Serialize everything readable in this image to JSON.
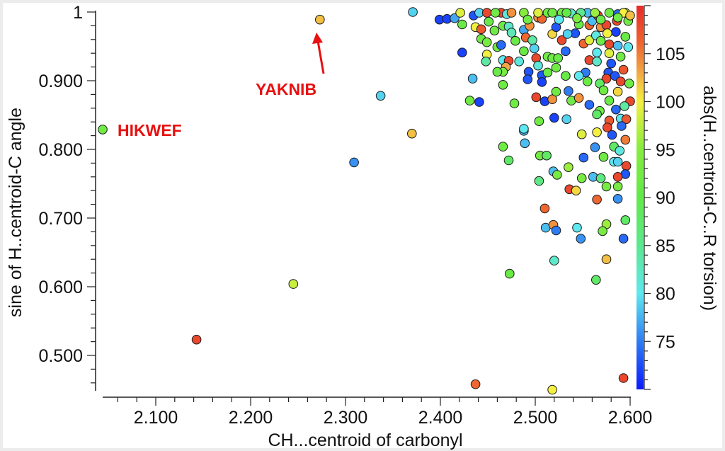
{
  "chart_data": {
    "type": "scatter",
    "title": "",
    "xlabel": "CH...centroid of carbonyl",
    "ylabel": "sine of H..centroid-C angle",
    "colorbar_label": "abs(H..centroid-C..R torsion)",
    "xlim": [
      2.037,
      2.602
    ],
    "ylim": [
      0.45,
      1.0
    ],
    "clim": [
      70,
      110
    ],
    "x_ticks": [
      2.1,
      2.2,
      2.3,
      2.4,
      2.5,
      2.6
    ],
    "x_tick_labels": [
      "2.100",
      "2.200",
      "2.300",
      "2.400",
      "2.500",
      "2.600"
    ],
    "y_ticks": [
      0.5,
      0.6,
      0.7,
      0.8,
      0.9,
      1.0
    ],
    "y_tick_labels": [
      "0.500",
      "0.600",
      "0.700",
      "0.800",
      "0.900",
      "1"
    ],
    "colorbar_ticks": [
      75,
      80,
      85,
      90,
      95,
      100,
      105
    ],
    "colorbar_tick_labels": [
      "75",
      "80",
      "85",
      "90",
      "95",
      "100",
      "105"
    ],
    "colorscale": [
      [
        70,
        "#0a1cff"
      ],
      [
        75,
        "#2f7cf2"
      ],
      [
        80,
        "#5fe8f0"
      ],
      [
        85,
        "#5ce890"
      ],
      [
        90,
        "#62ea48"
      ],
      [
        95,
        "#86ec40"
      ],
      [
        100,
        "#f4f040"
      ],
      [
        103,
        "#f2a844"
      ],
      [
        106,
        "#ee6630"
      ],
      [
        110,
        "#e52a2a"
      ]
    ],
    "grid": false,
    "annotations": [
      {
        "text": "HIKWEF",
        "x": 2.044,
        "y": 0.829,
        "color": "#e81010"
      },
      {
        "text": "YAKNIB",
        "x": 2.273,
        "y": 0.989,
        "color": "#e81010",
        "arrow": true
      }
    ],
    "points_format": [
      "x",
      "y",
      "torsion"
    ],
    "points": [
      [
        2.044,
        0.829,
        92
      ],
      [
        2.273,
        0.989,
        102
      ],
      [
        2.371,
        1.0,
        79
      ],
      [
        2.337,
        0.878,
        79
      ],
      [
        2.309,
        0.781,
        76
      ],
      [
        2.37,
        0.823,
        102
      ],
      [
        2.245,
        0.604,
        98
      ],
      [
        2.143,
        0.523,
        108
      ],
      [
        2.437,
        0.458,
        106
      ],
      [
        2.518,
        0.45,
        100
      ],
      [
        2.593,
        0.467,
        108
      ],
      [
        2.473,
        0.619,
        91
      ],
      [
        2.52,
        0.638,
        82
      ],
      [
        2.564,
        0.61,
        88
      ],
      [
        2.575,
        0.64,
        102
      ],
      [
        2.466,
        0.804,
        92
      ],
      [
        2.489,
        0.809,
        78
      ],
      [
        2.488,
        0.827,
        78
      ],
      [
        2.472,
        0.784,
        88
      ],
      [
        2.505,
        0.791,
        92
      ],
      [
        2.512,
        0.791,
        88
      ],
      [
        2.519,
        0.768,
        78
      ],
      [
        2.523,
        0.763,
        93
      ],
      [
        2.535,
        0.774,
        96
      ],
      [
        2.551,
        0.788,
        74
      ],
      [
        2.504,
        0.754,
        86
      ],
      [
        2.549,
        0.758,
        93
      ],
      [
        2.561,
        0.76,
        78
      ],
      [
        2.569,
        0.758,
        86
      ],
      [
        2.575,
        0.746,
        93
      ],
      [
        2.563,
        0.803,
        76
      ],
      [
        2.583,
        0.804,
        88
      ],
      [
        2.589,
        0.798,
        81
      ],
      [
        2.572,
        0.789,
        92
      ],
      [
        2.583,
        0.782,
        80
      ],
      [
        2.587,
        0.782,
        79
      ],
      [
        2.596,
        0.776,
        108
      ],
      [
        2.595,
        0.764,
        73
      ],
      [
        2.587,
        0.76,
        108
      ],
      [
        2.587,
        0.746,
        93
      ],
      [
        2.536,
        0.742,
        108
      ],
      [
        2.543,
        0.74,
        101
      ],
      [
        2.565,
        0.727,
        106
      ],
      [
        2.587,
        0.728,
        76
      ],
      [
        2.51,
        0.714,
        106
      ],
      [
        2.511,
        0.686,
        78
      ],
      [
        2.519,
        0.69,
        104
      ],
      [
        2.522,
        0.682,
        75
      ],
      [
        2.544,
        0.686,
        80
      ],
      [
        2.548,
        0.67,
        76
      ],
      [
        2.575,
        0.691,
        96
      ],
      [
        2.571,
        0.681,
        93
      ],
      [
        2.595,
        0.697,
        88
      ],
      [
        2.593,
        0.67,
        74
      ],
      [
        2.549,
        0.822,
        99
      ],
      [
        2.565,
        0.825,
        100
      ],
      [
        2.581,
        0.821,
        73
      ],
      [
        2.595,
        0.814,
        105
      ],
      [
        2.399,
        0.989,
        72
      ],
      [
        2.407,
        0.99,
        72
      ],
      [
        2.415,
        0.991,
        77
      ],
      [
        2.421,
        0.999,
        99
      ],
      [
        2.423,
        0.982,
        91
      ],
      [
        2.435,
        0.995,
        73
      ],
      [
        2.441,
        0.999,
        79
      ],
      [
        2.449,
        0.999,
        108
      ],
      [
        2.451,
        0.986,
        91
      ],
      [
        2.437,
        0.978,
        100
      ],
      [
        2.443,
        0.975,
        107
      ],
      [
        2.457,
        0.973,
        92
      ],
      [
        2.464,
        0.999,
        108
      ],
      [
        2.47,
        0.997,
        81
      ],
      [
        2.475,
        0.999,
        104
      ],
      [
        2.466,
        0.98,
        91
      ],
      [
        2.472,
        0.979,
        82
      ],
      [
        2.475,
        0.97,
        83
      ],
      [
        2.443,
        0.961,
        92
      ],
      [
        2.449,
        0.956,
        93
      ],
      [
        2.46,
        0.949,
        92
      ],
      [
        2.464,
        0.952,
        74
      ],
      [
        2.479,
        0.958,
        91
      ],
      [
        2.423,
        0.941,
        72
      ],
      [
        2.449,
        0.938,
        100
      ],
      [
        2.448,
        0.928,
        84
      ],
      [
        2.466,
        0.93,
        80
      ],
      [
        2.472,
        0.929,
        108
      ],
      [
        2.483,
        0.928,
        81
      ],
      [
        2.469,
        0.92,
        103
      ],
      [
        2.466,
        0.913,
        93
      ],
      [
        2.46,
        0.913,
        91
      ],
      [
        2.434,
        0.903,
        78
      ],
      [
        2.466,
        0.894,
        92
      ],
      [
        2.431,
        0.871,
        92
      ],
      [
        2.441,
        0.869,
        72
      ],
      [
        2.478,
        0.867,
        92
      ],
      [
        2.488,
        0.974,
        77
      ],
      [
        2.49,
        0.963,
        106
      ],
      [
        2.497,
        0.959,
        84
      ],
      [
        2.499,
        0.947,
        79
      ],
      [
        2.488,
        0.943,
        91
      ],
      [
        2.493,
        0.913,
        73
      ],
      [
        2.492,
        0.902,
        73
      ],
      [
        2.507,
        0.908,
        73
      ],
      [
        2.507,
        0.898,
        72
      ],
      [
        2.501,
        0.933,
        108
      ],
      [
        2.513,
        0.935,
        92
      ],
      [
        2.518,
        0.933,
        92
      ],
      [
        2.524,
        0.933,
        91
      ],
      [
        2.503,
        0.922,
        81
      ],
      [
        2.513,
        0.912,
        91
      ],
      [
        2.522,
        0.919,
        92
      ],
      [
        2.532,
        0.907,
        91
      ],
      [
        2.501,
        0.876,
        108
      ],
      [
        2.51,
        0.87,
        72
      ],
      [
        2.518,
        0.873,
        104
      ],
      [
        2.522,
        0.884,
        92
      ],
      [
        2.535,
        0.885,
        75
      ],
      [
        2.538,
        0.871,
        92
      ],
      [
        2.546,
        0.875,
        104
      ],
      [
        2.557,
        0.865,
        74
      ],
      [
        2.52,
        0.846,
        72
      ],
      [
        2.504,
        0.841,
        92
      ],
      [
        2.533,
        0.844,
        79
      ],
      [
        2.488,
        0.83,
        80
      ],
      [
        2.494,
        0.98,
        104
      ],
      [
        2.503,
        0.992,
        104
      ],
      [
        2.507,
        0.99,
        106
      ],
      [
        2.513,
        0.999,
        92
      ],
      [
        2.518,
        0.968,
        101
      ],
      [
        2.522,
        0.978,
        73
      ],
      [
        2.528,
        0.959,
        108
      ],
      [
        2.532,
        0.943,
        74
      ],
      [
        2.542,
        0.969,
        73
      ],
      [
        2.534,
        0.968,
        79
      ],
      [
        2.528,
        0.999,
        92
      ],
      [
        2.538,
        0.998,
        82
      ],
      [
        2.546,
        0.982,
        91
      ],
      [
        2.555,
        0.999,
        78
      ],
      [
        2.557,
        0.981,
        106
      ],
      [
        2.56,
        0.987,
        78
      ],
      [
        2.566,
        0.995,
        108
      ],
      [
        2.569,
        0.978,
        104
      ],
      [
        2.551,
        0.954,
        106
      ],
      [
        2.557,
        0.959,
        99
      ],
      [
        2.564,
        0.966,
        81
      ],
      [
        2.575,
        0.981,
        108
      ],
      [
        2.586,
        0.987,
        108
      ],
      [
        2.587,
        0.997,
        74
      ],
      [
        2.595,
        0.999,
        98
      ],
      [
        2.598,
        0.987,
        92
      ],
      [
        2.585,
        0.971,
        72
      ],
      [
        2.576,
        0.969,
        100
      ],
      [
        2.569,
        0.958,
        92
      ],
      [
        2.578,
        0.953,
        108
      ],
      [
        2.587,
        0.951,
        78
      ],
      [
        2.598,
        0.949,
        80
      ],
      [
        2.595,
        0.964,
        91
      ],
      [
        2.578,
        0.94,
        99
      ],
      [
        2.59,
        0.935,
        92
      ],
      [
        2.565,
        0.941,
        80
      ],
      [
        2.557,
        0.93,
        108
      ],
      [
        2.565,
        0.928,
        82
      ],
      [
        2.58,
        0.925,
        73
      ],
      [
        2.593,
        0.916,
        107
      ],
      [
        2.577,
        0.912,
        73
      ],
      [
        2.584,
        0.907,
        73
      ],
      [
        2.575,
        0.903,
        108
      ],
      [
        2.59,
        0.899,
        108
      ],
      [
        2.599,
        0.896,
        92
      ],
      [
        2.553,
        0.912,
        75
      ],
      [
        2.546,
        0.907,
        80
      ],
      [
        2.555,
        0.899,
        91
      ],
      [
        2.568,
        0.896,
        88
      ],
      [
        2.572,
        0.886,
        92
      ],
      [
        2.587,
        0.884,
        101
      ],
      [
        2.578,
        0.871,
        91
      ],
      [
        2.6,
        0.87,
        108
      ],
      [
        2.594,
        0.863,
        84
      ],
      [
        2.585,
        0.858,
        74
      ],
      [
        2.568,
        0.856,
        92
      ],
      [
        2.565,
        0.851,
        88
      ],
      [
        2.578,
        0.842,
        107
      ],
      [
        2.59,
        0.845,
        80
      ],
      [
        2.596,
        0.844,
        107
      ],
      [
        2.576,
        0.832,
        108
      ],
      [
        2.591,
        0.834,
        74
      ],
      [
        2.458,
        0.999,
        92
      ],
      [
        2.488,
        0.999,
        95
      ],
      [
        2.503,
        0.999,
        99
      ],
      [
        2.518,
        0.999,
        92
      ],
      [
        2.533,
        0.999,
        90
      ],
      [
        2.548,
        0.999,
        85
      ],
      [
        2.563,
        0.999,
        96
      ],
      [
        2.578,
        0.999,
        92
      ],
      [
        2.593,
        0.999,
        100
      ],
      [
        2.6,
        0.995,
        102
      ],
      [
        2.492,
        0.989,
        92
      ],
      [
        2.525,
        0.989,
        80
      ],
      [
        2.544,
        0.991,
        94
      ],
      [
        2.569,
        0.989,
        91
      ],
      [
        2.587,
        0.992,
        92
      ]
    ]
  }
}
